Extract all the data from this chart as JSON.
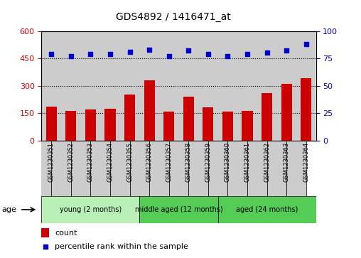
{
  "title": "GDS4892 / 1416471_at",
  "samples": [
    "GSM1230351",
    "GSM1230352",
    "GSM1230353",
    "GSM1230354",
    "GSM1230355",
    "GSM1230356",
    "GSM1230357",
    "GSM1230358",
    "GSM1230359",
    "GSM1230360",
    "GSM1230361",
    "GSM1230362",
    "GSM1230363",
    "GSM1230364"
  ],
  "counts": [
    185,
    163,
    170,
    175,
    253,
    330,
    160,
    240,
    183,
    160,
    163,
    260,
    310,
    340
  ],
  "percentile_ranks": [
    79,
    77,
    79,
    79,
    81,
    83,
    77,
    82,
    79,
    77,
    79,
    80,
    82,
    88
  ],
  "ylim_left": [
    0,
    600
  ],
  "ylim_right": [
    0,
    100
  ],
  "yticks_left": [
    0,
    150,
    300,
    450,
    600
  ],
  "yticks_right": [
    0,
    25,
    50,
    75,
    100
  ],
  "bar_color": "#cc0000",
  "dot_color": "#0000cc",
  "column_bg_color": "#cccccc",
  "plot_bg_color": "#ffffff",
  "tick_label_color_left": "#cc0000",
  "tick_label_color_right": "#0000cc",
  "age_label": "age",
  "legend_count_label": "count",
  "legend_percentile_label": "percentile rank within the sample",
  "group_data": [
    {
      "label": "young (2 months)",
      "start": 0,
      "end": 5,
      "color": "#b8f0b8"
    },
    {
      "label": "middle aged (12 months)",
      "start": 5,
      "end": 9,
      "color": "#55cc55"
    },
    {
      "label": "aged (24 months)",
      "start": 9,
      "end": 14,
      "color": "#55cc55"
    }
  ]
}
